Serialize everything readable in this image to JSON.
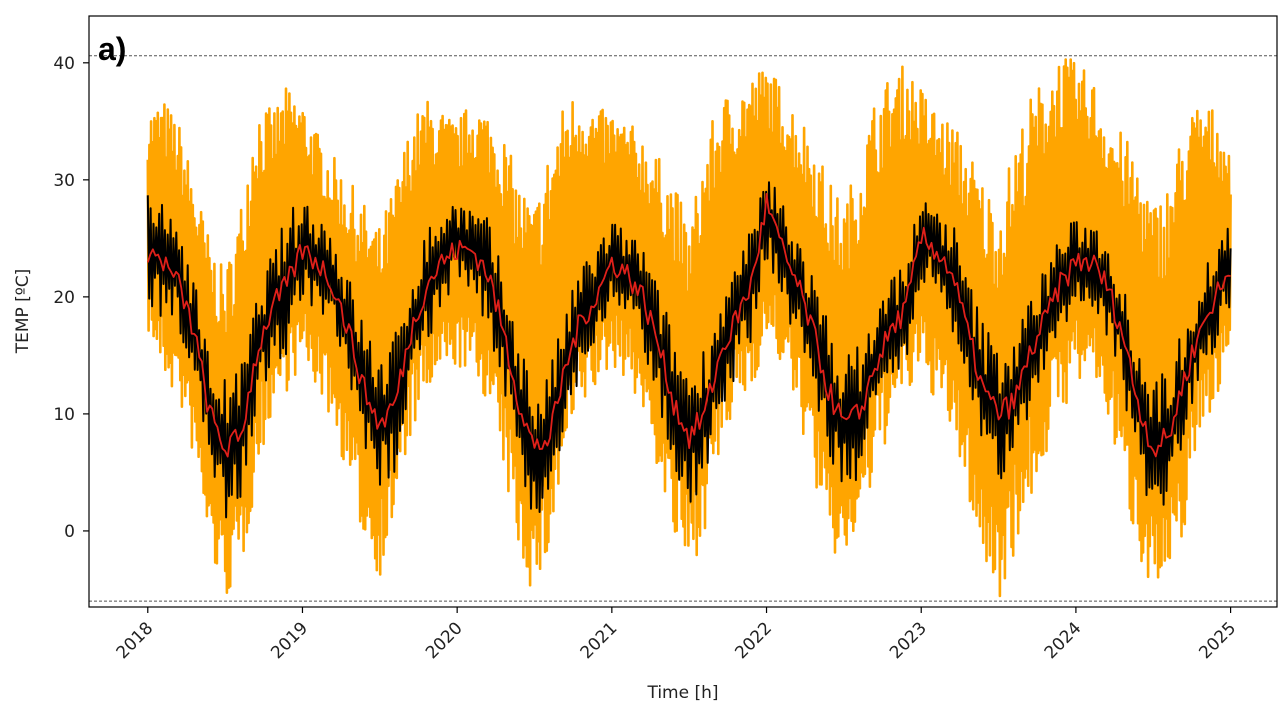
{
  "chart_data": {
    "type": "line",
    "panel_label": "a)",
    "title": "",
    "xlabel": "Time [h]",
    "ylabel": "TEMP [ºC]",
    "xlim": [
      2017.62,
      2025.3
    ],
    "ylim": [
      -6.5,
      44
    ],
    "x_ticks": [
      2018,
      2019,
      2020,
      2021,
      2022,
      2023,
      2024,
      2025
    ],
    "x_tick_labels": [
      "2018",
      "2019",
      "2020",
      "2021",
      "2022",
      "2023",
      "2024",
      "2025"
    ],
    "y_ticks": [
      0,
      10,
      20,
      30,
      40
    ],
    "y_tick_labels": [
      "0",
      "10",
      "20",
      "30",
      "40"
    ],
    "reference_lines": [
      {
        "name": "upper-limit",
        "y": 40.6,
        "style": "dashed",
        "color": "#555555"
      },
      {
        "name": "lower-limit",
        "y": -6.0,
        "style": "dashed",
        "color": "#555555"
      }
    ],
    "series": [
      {
        "name": "hourly-range",
        "color": "#FFA500",
        "x": [
          2018.0,
          2018.1,
          2018.2,
          2018.3,
          2018.4,
          2018.5,
          2018.6,
          2018.7,
          2018.8,
          2018.9,
          2019.0,
          2019.1,
          2019.2,
          2019.3,
          2019.4,
          2019.5,
          2019.6,
          2019.7,
          2019.8,
          2019.9,
          2020.0,
          2020.1,
          2020.2,
          2020.3,
          2020.4,
          2020.5,
          2020.6,
          2020.7,
          2020.8,
          2020.9,
          2021.0,
          2021.1,
          2021.2,
          2021.3,
          2021.4,
          2021.5,
          2021.6,
          2021.7,
          2021.8,
          2021.9,
          2022.0,
          2022.1,
          2022.2,
          2022.3,
          2022.4,
          2022.5,
          2022.6,
          2022.7,
          2022.8,
          2022.9,
          2023.0,
          2023.1,
          2023.2,
          2023.3,
          2023.4,
          2023.5,
          2023.6,
          2023.7,
          2023.8,
          2023.9,
          2024.0,
          2024.1,
          2024.2,
          2024.3,
          2024.4,
          2024.5,
          2024.6,
          2024.7,
          2024.8,
          2024.9,
          2025.0
        ],
        "upper": [
          36,
          37,
          35,
          30,
          25,
          22,
          28,
          37,
          36,
          38,
          37,
          34,
          32,
          30,
          28,
          26,
          30,
          35,
          37,
          36,
          35,
          37,
          36,
          34,
          30,
          28,
          33,
          37,
          38,
          36,
          36,
          35,
          34,
          32,
          30,
          26,
          33,
          37,
          38,
          39,
          40,
          38,
          36,
          34,
          30,
          28,
          32,
          37,
          39,
          40,
          38,
          36,
          35,
          33,
          30,
          28,
          33,
          37,
          39,
          41,
          40,
          39,
          36,
          34,
          32,
          28,
          30,
          35,
          37,
          36,
          33
        ],
        "lower": [
          17,
          13,
          11,
          6,
          -2,
          -6,
          -4,
          4,
          10,
          12,
          14,
          12,
          9,
          4,
          -1,
          -4,
          1,
          8,
          11,
          13,
          14,
          13,
          11,
          5,
          -2,
          -6,
          -2,
          6,
          10,
          12,
          14,
          13,
          10,
          5,
          -1,
          -4,
          0,
          6,
          10,
          12,
          16,
          14,
          10,
          5,
          -2,
          -3,
          0,
          4,
          9,
          11,
          13,
          11,
          8,
          3,
          -3,
          -6,
          -2,
          2,
          6,
          10,
          12,
          13,
          10,
          4,
          -2,
          -5,
          -6,
          0,
          8,
          11,
          14
        ]
      },
      {
        "name": "daily-mean",
        "color": "#000000",
        "x": [
          2018.0,
          2018.1,
          2018.2,
          2018.3,
          2018.4,
          2018.5,
          2018.6,
          2018.7,
          2018.8,
          2018.9,
          2019.0,
          2019.1,
          2019.2,
          2019.3,
          2019.4,
          2019.5,
          2019.6,
          2019.7,
          2019.8,
          2019.9,
          2020.0,
          2020.1,
          2020.2,
          2020.3,
          2020.4,
          2020.5,
          2020.6,
          2020.7,
          2020.8,
          2020.9,
          2021.0,
          2021.1,
          2021.2,
          2021.3,
          2021.4,
          2021.5,
          2021.6,
          2021.7,
          2021.8,
          2021.9,
          2022.0,
          2022.1,
          2022.2,
          2022.3,
          2022.4,
          2022.5,
          2022.6,
          2022.7,
          2022.8,
          2022.9,
          2023.0,
          2023.1,
          2023.2,
          2023.3,
          2023.4,
          2023.5,
          2023.6,
          2023.7,
          2023.8,
          2023.9,
          2024.0,
          2024.1,
          2024.2,
          2024.3,
          2024.4,
          2024.5,
          2024.6,
          2024.7,
          2024.8,
          2024.9,
          2025.0
        ],
        "values": [
          24,
          23,
          22,
          17,
          10,
          7,
          8,
          15,
          19,
          21,
          24,
          23,
          21,
          17,
          12,
          9,
          11,
          17,
          21,
          23,
          25,
          24,
          22,
          17,
          11,
          6,
          8,
          14,
          18,
          20,
          23,
          22,
          20,
          16,
          11,
          8,
          10,
          15,
          18,
          21,
          27,
          24,
          21,
          17,
          12,
          9,
          10,
          14,
          17,
          19,
          25,
          24,
          22,
          17,
          12,
          10,
          11,
          15,
          18,
          21,
          23,
          23,
          21,
          17,
          11,
          7,
          8,
          13,
          17,
          20,
          23
        ],
        "spread": [
          4,
          4,
          4,
          4,
          4,
          5,
          5,
          4,
          4,
          5,
          4,
          4,
          4,
          4,
          5,
          5,
          5,
          4,
          4,
          4,
          3,
          3,
          4,
          4,
          5,
          5,
          5,
          4,
          4,
          4,
          3,
          3,
          4,
          4,
          5,
          5,
          5,
          4,
          4,
          4,
          3,
          4,
          4,
          4,
          5,
          5,
          5,
          4,
          4,
          4,
          3,
          3,
          4,
          4,
          5,
          5,
          5,
          4,
          4,
          4,
          3,
          3,
          4,
          4,
          5,
          5,
          5,
          4,
          4,
          4,
          3
        ]
      },
      {
        "name": "smoothed-mean",
        "color": "#E0201A",
        "x": [
          2018.0,
          2018.1,
          2018.2,
          2018.3,
          2018.4,
          2018.5,
          2018.6,
          2018.7,
          2018.8,
          2018.9,
          2019.0,
          2019.1,
          2019.2,
          2019.3,
          2019.4,
          2019.5,
          2019.6,
          2019.7,
          2019.8,
          2019.9,
          2020.0,
          2020.1,
          2020.2,
          2020.3,
          2020.4,
          2020.5,
          2020.6,
          2020.7,
          2020.8,
          2020.9,
          2021.0,
          2021.1,
          2021.2,
          2021.3,
          2021.4,
          2021.5,
          2021.6,
          2021.7,
          2021.8,
          2021.9,
          2022.0,
          2022.1,
          2022.2,
          2022.3,
          2022.4,
          2022.5,
          2022.6,
          2022.7,
          2022.8,
          2022.9,
          2023.0,
          2023.1,
          2023.2,
          2023.3,
          2023.4,
          2023.5,
          2023.6,
          2023.7,
          2023.8,
          2023.9,
          2024.0,
          2024.1,
          2024.2,
          2024.3,
          2024.4,
          2024.5,
          2024.6,
          2024.7,
          2024.8,
          2024.9,
          2025.0
        ],
        "values": [
          24,
          23,
          21,
          17,
          10,
          7,
          8,
          15,
          19,
          21,
          24,
          23,
          21,
          17,
          12,
          9,
          11,
          17,
          21,
          23,
          24,
          24,
          22,
          17,
          11,
          7,
          8,
          14,
          18,
          20,
          23,
          22,
          20,
          16,
          11,
          8,
          10,
          15,
          18,
          21,
          28,
          24,
          21,
          17,
          12,
          9,
          10,
          14,
          17,
          19,
          25,
          24,
          22,
          17,
          12,
          10,
          11,
          15,
          18,
          21,
          23,
          23,
          21,
          17,
          11,
          7,
          8,
          13,
          17,
          20,
          22
        ]
      }
    ]
  }
}
